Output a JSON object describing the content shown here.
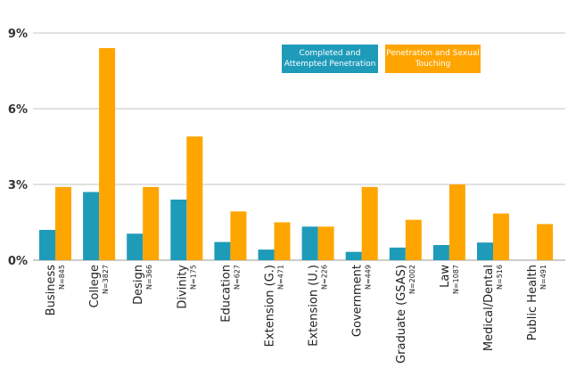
{
  "chart_data": {
    "type": "bar",
    "categories": [
      "Business",
      "College",
      "Design",
      "Divinity",
      "Education",
      "Extension (G.)",
      "Extension (U.)",
      "Government",
      "Graduate (GSAS)",
      "Law",
      "Medical/Dental",
      "Public Health"
    ],
    "category_n": [
      "N=845",
      "N=3827",
      "N=366",
      "N=175",
      "N=627",
      "N=471",
      "N=226",
      "N=449",
      "N=2002",
      "N=1087",
      "N=516",
      "N=491"
    ],
    "series": [
      {
        "name": "Completed and Attempted Penetration",
        "color": "#1f9bba",
        "values": [
          1.2,
          2.7,
          1.05,
          2.4,
          0.72,
          0.42,
          1.33,
          0.33,
          0.5,
          0.6,
          0.7,
          0
        ]
      },
      {
        "name": "Penetration and Sexual Touching",
        "color": "#ffa500",
        "values": [
          2.9,
          8.4,
          2.9,
          4.9,
          1.93,
          1.5,
          1.33,
          2.9,
          1.6,
          3.0,
          1.85,
          1.43
        ]
      }
    ],
    "yticks": [
      "0%",
      "3%",
      "6%",
      "9%"
    ],
    "ylim": [
      0,
      9
    ],
    "grid": true,
    "legend_position": "top-right"
  }
}
